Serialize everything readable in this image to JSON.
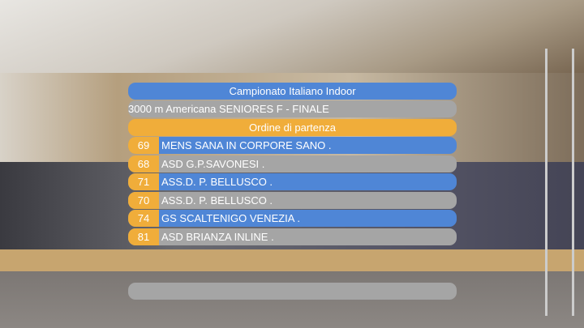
{
  "title": "Campionato Italiano Indoor",
  "event": "3000 m Americana SENIORES F - FINALE",
  "section": "Ordine di partenza",
  "entries": [
    {
      "number": "69",
      "team": "MENS SANA IN CORPORE SANO ."
    },
    {
      "number": "68",
      "team": "ASD G.P.SAVONESI ."
    },
    {
      "number": "71",
      "team": "ASS.D. P. BELLUSCO ."
    },
    {
      "number": "70",
      "team": "ASS.D. P. BELLUSCO ."
    },
    {
      "number": "74",
      "team": "GS SCALTENIGO VENEZIA ."
    },
    {
      "number": "81",
      "team": "ASD BRIANZA INLINE ."
    }
  ],
  "colors": {
    "blue": "#4f86d6",
    "grey": "#a5a5a5",
    "orange": "#f0ad3a"
  }
}
